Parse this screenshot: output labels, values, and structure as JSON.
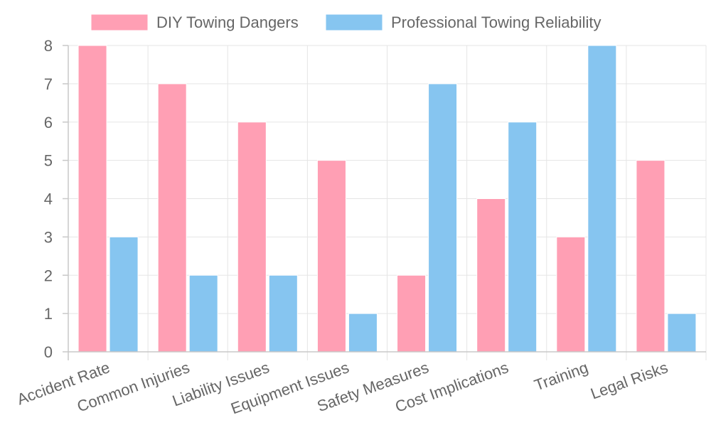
{
  "chart_data": {
    "type": "bar",
    "title": "",
    "xlabel": "",
    "ylabel": "",
    "categories": [
      "Accident Rate",
      "Common Injuries",
      "Liability Issues",
      "Equipment Issues",
      "Safety Measures",
      "Cost Implications",
      "Training",
      "Legal Risks"
    ],
    "series": [
      {
        "name": "DIY Towing Dangers",
        "values": [
          8,
          7,
          6,
          5,
          2,
          4,
          3,
          5
        ],
        "color": "#ff9fb4",
        "border_color": "#ffffff"
      },
      {
        "name": "Professional Towing Reliability",
        "values": [
          3,
          2,
          2,
          1,
          7,
          6,
          8,
          1
        ],
        "color": "#86c5f0",
        "border_color": "#ffffff"
      }
    ],
    "ylim": [
      0,
      8
    ],
    "yticks": [
      0,
      1,
      2,
      3,
      4,
      5,
      6,
      7,
      8
    ],
    "grid": true,
    "legend_position": "top"
  }
}
